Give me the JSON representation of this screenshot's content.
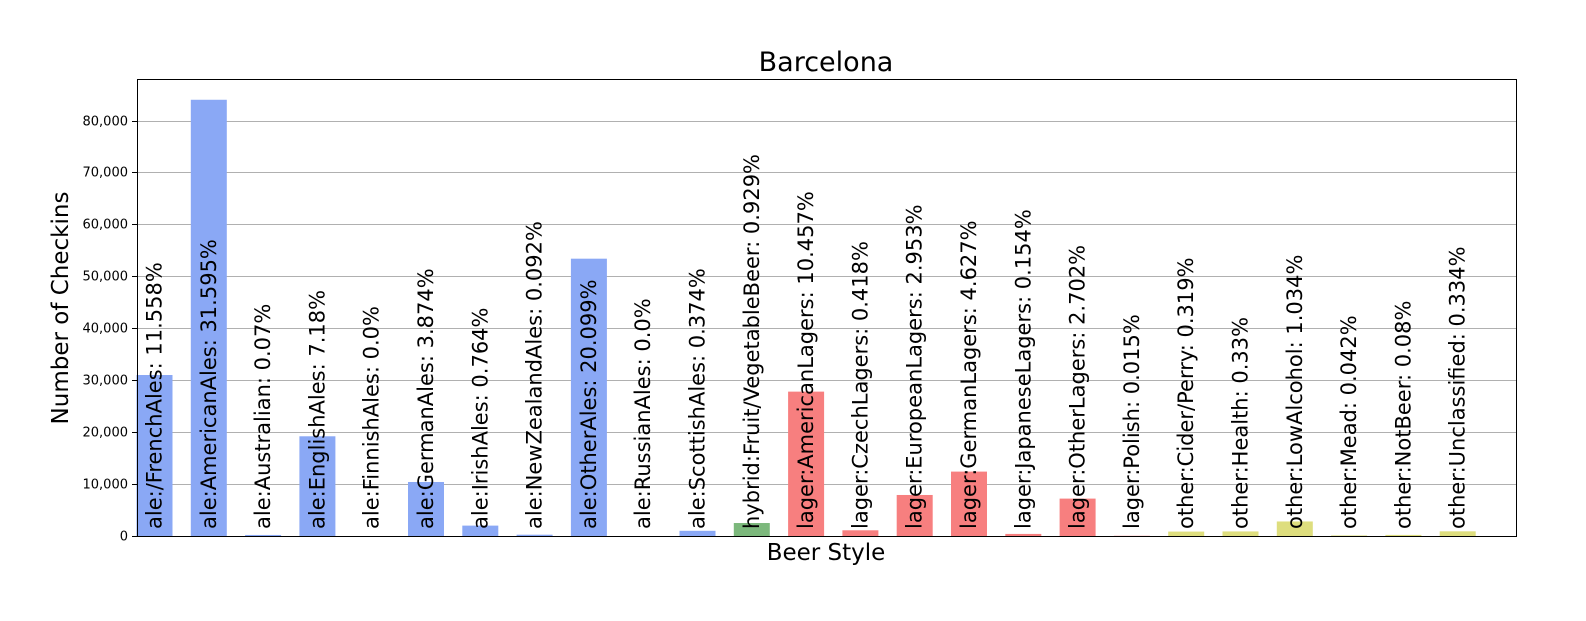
{
  "chart_data": {
    "type": "bar",
    "title": "Barcelona",
    "xlabel": "Beer Style",
    "ylabel": "Number of Checkins",
    "ylim": [
      0,
      88000
    ],
    "yticks": [
      0,
      10000,
      20000,
      30000,
      40000,
      50000,
      60000,
      70000,
      80000
    ],
    "ytick_labels": [
      "0",
      "10,000",
      "20,000",
      "30,000",
      "40,000",
      "50,000",
      "60,000",
      "70,000",
      "80,000"
    ],
    "grid": "horizontal",
    "categories": [
      "ale:/FrenchAles",
      "ale:AmericanAles",
      "ale:Australian",
      "ale:EnglishAles",
      "ale:FinnishAles",
      "ale:GermanAles",
      "ale:IrishAles",
      "ale:NewZealandAles",
      "ale:OtherAles",
      "ale:RussianAles",
      "ale:ScottishAles",
      "hybrid:Fruit/VegetableBeer",
      "lager:AmericanLagers",
      "lager:CzechLagers",
      "lager:EuropeanLagers",
      "lager:GermanLagers",
      "lager:JapaneseLagers",
      "lager:OtherLagers",
      "lager:Polish",
      "other:Cider/Perry",
      "other:Health",
      "other:LowAlcohol",
      "other:Mead",
      "other:NotBeer",
      "other:Unclassified"
    ],
    "values": [
      31000,
      84000,
      200,
      19200,
      0,
      10400,
      2000,
      250,
      53400,
      0,
      1000,
      2500,
      27800,
      1100,
      7900,
      12400,
      400,
      7200,
      40,
      850,
      880,
      2800,
      110,
      210,
      900
    ],
    "bar_labels": [
      "ale:/FrenchAles: 11.558%",
      "ale:AmericanAles: 31.595%",
      "ale:Australian: 0.07%",
      "ale:EnglishAles: 7.18%",
      "ale:FinnishAles: 0.0%",
      "ale:GermanAles: 3.874%",
      "ale:IrishAles: 0.764%",
      "ale:NewZealandAles: 0.092%",
      "ale:OtherAles: 20.099%",
      "ale:RussianAles: 0.0%",
      "ale:ScottishAles: 0.374%",
      "hybrid:Fruit/VegetableBeer: 0.929%",
      "lager:AmericanLagers: 10.457%",
      "lager:CzechLagers: 0.418%",
      "lager:EuropeanLagers: 2.953%",
      "lager:GermanLagers: 4.627%",
      "lager:JapaneseLagers: 0.154%",
      "lager:OtherLagers: 2.702%",
      "lager:Polish: 0.015%",
      "other:Cider/Perry: 0.319%",
      "other:Health: 0.33%",
      "other:LowAlcohol: 1.034%",
      "other:Mead: 0.042%",
      "other:NotBeer: 0.08%",
      "other:Unclassified: 0.334%"
    ],
    "colors": {
      "ale": "#8aa8f5",
      "hybrid": "#7cb87c",
      "lager": "#f77f7f",
      "other": "#dede7e"
    }
  }
}
